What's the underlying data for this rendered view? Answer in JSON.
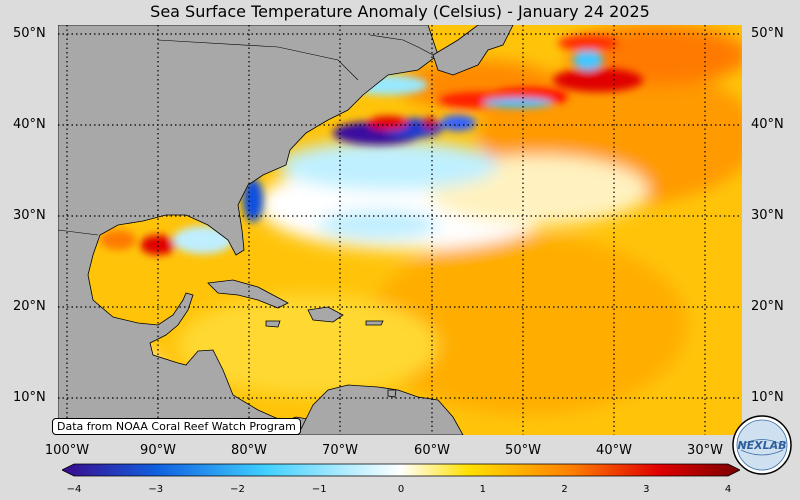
{
  "title": "Sea Surface Temperature Anomaly (Celsius) - January 24 2025",
  "source_note": "Data from NOAA Coral Reef Watch Program",
  "logo_text": "NEXLAB",
  "lat_labels": [
    "50°N",
    "40°N",
    "30°N",
    "20°N",
    "10°N"
  ],
  "lon_labels": [
    "100°W",
    "90°W",
    "80°W",
    "70°W",
    "60°W",
    "50°W",
    "40°W",
    "30°W"
  ],
  "colorbar": {
    "ticks": [
      "−4",
      "−3",
      "−2",
      "−1",
      "0",
      "1",
      "2",
      "3",
      "4"
    ],
    "range": [
      -4,
      4
    ],
    "colors": [
      "#3a0a8c",
      "#1060e0",
      "#40d0ff",
      "#ffffff",
      "#ffe000",
      "#ff8000",
      "#e00000",
      "#7a0000"
    ]
  },
  "colors": {
    "land": "#a8a8a8",
    "background": "#dcdcdc",
    "warm_ocean": "#ffc40a"
  }
}
